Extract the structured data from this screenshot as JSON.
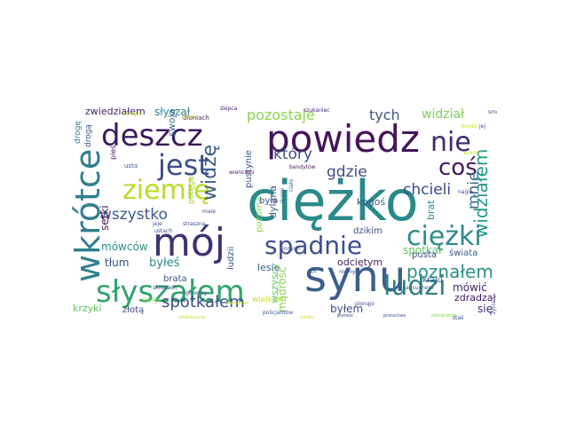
{
  "word_cloud": {
    "words": [
      {
        "text": "ciężko",
        "color": "#2a8a8a"
      },
      {
        "text": "powiedz",
        "color": "#46155a"
      },
      {
        "text": "nie",
        "color": "#3b2a73"
      },
      {
        "text": "mój",
        "color": "#3a3473"
      },
      {
        "text": "synu",
        "color": "#3b5e8c"
      },
      {
        "text": "wkrótce",
        "color": "#2f7f8e"
      },
      {
        "text": "słyszałem",
        "color": "#31a36a"
      },
      {
        "text": "ziemię",
        "color": "#b6dd28"
      },
      {
        "text": "spadnie",
        "color": "#3b4f8a"
      },
      {
        "text": "deszcz",
        "color": "#3a1a5e"
      },
      {
        "text": "jest",
        "color": "#3c4d8a"
      },
      {
        "text": "ciężki",
        "color": "#2d8a88"
      },
      {
        "text": "ludzi",
        "color": "#2d8085"
      },
      {
        "text": "coś",
        "color": "#46175e"
      },
      {
        "text": "poznałem",
        "color": "#2a9285"
      },
      {
        "text": "widziałem",
        "color": "#1f9a8a"
      },
      {
        "text": "widzę",
        "color": "#3a5a8c"
      },
      {
        "text": "spotkałem",
        "color": "#3b4f8a"
      },
      {
        "text": "wszystko",
        "color": "#3a5a8c"
      },
      {
        "text": "pozostaje",
        "color": "#86d549"
      },
      {
        "text": "który",
        "color": "#3b4f8a"
      },
      {
        "text": "gdzie",
        "color": "#3c4a86"
      },
      {
        "text": "mnie",
        "color": "#3b6c8e"
      },
      {
        "text": "chcieli",
        "color": "#3b4a86"
      },
      {
        "text": "tych",
        "color": "#3a5a8c"
      },
      {
        "text": "widział",
        "color": "#7ad151"
      },
      {
        "text": "zwiedziałem",
        "color": "#46236e"
      },
      {
        "text": "słyszał",
        "color": "#31808e"
      },
      {
        "text": "swoją",
        "color": "#3b6c8e"
      },
      {
        "text": "setki",
        "color": "#46175e"
      },
      {
        "text": "mówców",
        "color": "#2a9285"
      },
      {
        "text": "tłum",
        "color": "#3b4f8a"
      },
      {
        "text": "byłeś",
        "color": "#2a8a8a"
      },
      {
        "text": "brata",
        "color": "#3b4f8a"
      },
      {
        "text": "krzyki",
        "color": "#5ec962"
      },
      {
        "text": "złotą",
        "color": "#3b4f8a"
      },
      {
        "text": "mądrość",
        "color": "#86d549"
      },
      {
        "text": "byłem",
        "color": "#3b4f8a"
      },
      {
        "text": "się",
        "color": "#3b2a73"
      },
      {
        "text": "spotkał",
        "color": "#5ec962"
      },
      {
        "text": "mówić",
        "color": "#46236e"
      },
      {
        "text": "zdradzał",
        "color": "#3a1a5e"
      },
      {
        "text": "kraju",
        "color": "#3b4f8a"
      },
      {
        "text": "świata",
        "color": "#3a5a8c"
      },
      {
        "text": "pusta",
        "color": "#3b4f8a"
      },
      {
        "text": "brat",
        "color": "#2a8a8a"
      },
      {
        "text": "dzikim",
        "color": "#3b4f8a"
      },
      {
        "text": "kogoś",
        "color": "#3a5a8c"
      },
      {
        "text": "odciętym",
        "color": "#46175e"
      },
      {
        "text": "lesie",
        "color": "#3a5a8c"
      },
      {
        "text": "była",
        "color": "#3b4f8a"
      },
      {
        "text": "dylana",
        "color": "#3a5a8c"
      },
      {
        "text": "wszyscy",
        "color": "#5ec962"
      },
      {
        "text": "ludzii",
        "color": "#3b4f8a"
      },
      {
        "text": "pustynie",
        "color": "#3b4f8a"
      },
      {
        "text": "pozorna",
        "color": "#86d549"
      },
      {
        "text": "potęga",
        "color": "#a0da39"
      },
      {
        "text": "wielkim",
        "color": "#c0df25"
      },
      {
        "text": "drogę",
        "color": "#31808e"
      },
      {
        "text": "drogą",
        "color": "#3a5a8c"
      },
      {
        "text": "pieś",
        "color": "#46175e"
      },
      {
        "text": "usta",
        "color": "#3a5a8c"
      },
      {
        "text": "dłoniach",
        "color": "#46175e"
      },
      {
        "text": "ślepca",
        "color": "#46236e"
      },
      {
        "text": "szukaniec",
        "color": "#46236e"
      },
      {
        "text": "zakryte",
        "color": "#c0df25"
      },
      {
        "text": "bandytów",
        "color": "#46175e"
      },
      {
        "text": "wieńcami",
        "color": "#46175e"
      },
      {
        "text": "maie",
        "color": "#3b4f8a"
      },
      {
        "text": "skargi",
        "color": "#3a5a8c"
      },
      {
        "text": "ciało",
        "color": "#3b4f8a"
      },
      {
        "text": "innych",
        "color": "#3b4f8a"
      },
      {
        "text": "policjantów",
        "color": "#3a5a8c"
      },
      {
        "text": "niemych",
        "color": "#3b4f8a"
      },
      {
        "text": "pierwsi",
        "color": "#3b4f8a"
      },
      {
        "text": "pionąjo",
        "color": "#3b4f8a"
      },
      {
        "text": "sancuchem",
        "color": "#3b4f8a"
      },
      {
        "text": "straszne",
        "color": "#3b4f8a"
      },
      {
        "text": "skronach",
        "color": "#3b4f8a"
      },
      {
        "text": "zginiemy",
        "color": "#3b4f8a"
      },
      {
        "text": "stango",
        "color": "#86d549"
      },
      {
        "text": "ustach",
        "color": "#3b4f8a"
      },
      {
        "text": "proroctwa",
        "color": "#3b4f8a"
      },
      {
        "text": "odcięcienia",
        "color": "#86d549"
      },
      {
        "text": "mroku",
        "color": "#c0df25"
      },
      {
        "text": "stali",
        "color": "#3b4f8a"
      },
      {
        "text": "życia",
        "color": "#3b4f8a"
      },
      {
        "text": "nagie",
        "color": "#3b4f8a"
      },
      {
        "text": "jej",
        "color": "#3b4f8a"
      },
      {
        "text": "wosie",
        "color": "#c0df25"
      },
      {
        "text": "wiemki",
        "color": "#c0df25"
      },
      {
        "text": "zawodowe",
        "color": "#c0df25"
      },
      {
        "text": "jeje",
        "color": "#3b4f8a"
      },
      {
        "text": "dziale",
        "color": "#c0df25"
      },
      {
        "text": "wiśtakością",
        "color": "#c0df25"
      },
      {
        "text": "ich",
        "color": "#3b4f8a"
      },
      {
        "text": "smoki",
        "color": "#3b4f8a"
      }
    ]
  }
}
